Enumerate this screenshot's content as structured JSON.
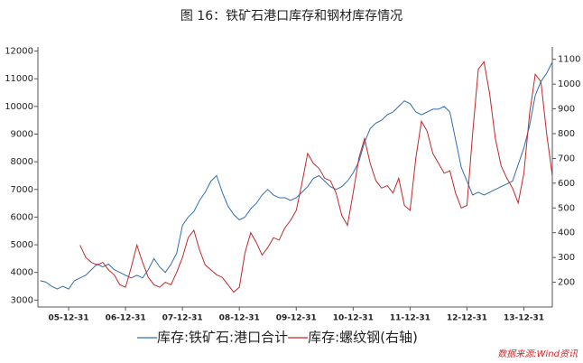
{
  "chart_data": {
    "type": "line",
    "title": "图 16：铁矿石港口库存和钢材库存情况",
    "source": "数据来源:Wind资讯",
    "xlim": [
      2005.46,
      2014.5
    ],
    "xticks": [
      {
        "value": 2006,
        "label": "05-12-31"
      },
      {
        "value": 2007,
        "label": "06-12-31"
      },
      {
        "value": 2008,
        "label": "07-12-31"
      },
      {
        "value": 2009,
        "label": "08-12-31"
      },
      {
        "value": 2010,
        "label": "09-12-31"
      },
      {
        "value": 2011,
        "label": "10-12-31"
      },
      {
        "value": 2012,
        "label": "11-12-31"
      },
      {
        "value": 2013,
        "label": "12-12-31"
      },
      {
        "value": 2014,
        "label": "13-12-31"
      }
    ],
    "ylim": [
      2750,
      12150
    ],
    "yticks": [
      3000,
      4000,
      5000,
      6000,
      7000,
      8000,
      9000,
      10000,
      11000,
      12000
    ],
    "y2lim": [
      100,
      1150
    ],
    "y2ticks": [
      200,
      300,
      400,
      500,
      600,
      700,
      800,
      900,
      1000,
      1100
    ],
    "legend": "bottom",
    "series": [
      {
        "name": "库存:铁矿石:港口合计",
        "color": "#2e6db4",
        "axis": "y",
        "x": [
          2005.5,
          2005.6,
          2005.7,
          2005.8,
          2005.9,
          2006.0,
          2006.1,
          2006.2,
          2006.3,
          2006.4,
          2006.5,
          2006.6,
          2006.7,
          2006.8,
          2006.9,
          2007.0,
          2007.1,
          2007.2,
          2007.3,
          2007.4,
          2007.5,
          2007.6,
          2007.7,
          2007.8,
          2007.9,
          2008.0,
          2008.1,
          2008.2,
          2008.3,
          2008.4,
          2008.5,
          2008.6,
          2008.7,
          2008.8,
          2008.9,
          2009.0,
          2009.1,
          2009.2,
          2009.3,
          2009.4,
          2009.5,
          2009.6,
          2009.7,
          2009.8,
          2009.9,
          2010.0,
          2010.1,
          2010.2,
          2010.3,
          2010.4,
          2010.5,
          2010.6,
          2010.7,
          2010.8,
          2010.9,
          2011.0,
          2011.1,
          2011.2,
          2011.3,
          2011.4,
          2011.5,
          2011.6,
          2011.7,
          2011.8,
          2011.9,
          2012.0,
          2012.1,
          2012.2,
          2012.3,
          2012.4,
          2012.5,
          2012.6,
          2012.7,
          2012.8,
          2012.9,
          2013.0,
          2013.1,
          2013.2,
          2013.3,
          2013.4,
          2013.5,
          2013.6,
          2013.7,
          2013.8,
          2013.9,
          2014.0,
          2014.1,
          2014.2,
          2014.3,
          2014.4,
          2014.5
        ],
        "values": [
          3700,
          3650,
          3500,
          3400,
          3500,
          3400,
          3700,
          3800,
          3900,
          4100,
          4300,
          4200,
          4300,
          4100,
          4000,
          3900,
          3800,
          3900,
          3800,
          4100,
          4500,
          4200,
          4000,
          4300,
          4700,
          5700,
          6000,
          6200,
          6600,
          6900,
          7300,
          7500,
          6900,
          6400,
          6100,
          5900,
          6000,
          6300,
          6500,
          6800,
          7000,
          6800,
          6700,
          6700,
          6600,
          6700,
          6900,
          7100,
          7400,
          7500,
          7300,
          7100,
          7000,
          7100,
          7300,
          7600,
          8000,
          8700,
          9200,
          9400,
          9500,
          9700,
          9800,
          10000,
          10200,
          10100,
          9800,
          9700,
          9800,
          9900,
          9900,
          10000,
          9800,
          8800,
          7800,
          7300,
          6800,
          6900,
          6800,
          6900,
          7000,
          7100,
          7200,
          7300,
          7900,
          8500,
          9300,
          10400,
          10900,
          11200,
          11600
        ]
      },
      {
        "name": "库存:螺纹钢(右轴)",
        "color": "#c0282b",
        "axis": "y2",
        "x": [
          2006.2,
          2006.3,
          2006.4,
          2006.5,
          2006.6,
          2006.7,
          2006.8,
          2006.9,
          2007.0,
          2007.1,
          2007.2,
          2007.3,
          2007.4,
          2007.5,
          2007.6,
          2007.7,
          2007.8,
          2007.9,
          2008.0,
          2008.1,
          2008.2,
          2008.3,
          2008.4,
          2008.5,
          2008.6,
          2008.7,
          2008.8,
          2008.9,
          2009.0,
          2009.1,
          2009.2,
          2009.3,
          2009.4,
          2009.5,
          2009.6,
          2009.7,
          2009.8,
          2009.9,
          2010.0,
          2010.1,
          2010.2,
          2010.3,
          2010.4,
          2010.5,
          2010.6,
          2010.7,
          2010.8,
          2010.9,
          2011.0,
          2011.1,
          2011.2,
          2011.3,
          2011.4,
          2011.5,
          2011.6,
          2011.7,
          2011.8,
          2011.9,
          2012.0,
          2012.1,
          2012.2,
          2012.3,
          2012.4,
          2012.5,
          2012.6,
          2012.7,
          2012.8,
          2012.9,
          2013.0,
          2013.1,
          2013.2,
          2013.3,
          2013.4,
          2013.5,
          2013.6,
          2013.7,
          2013.8,
          2013.9,
          2014.0,
          2014.1,
          2014.2,
          2014.3,
          2014.4,
          2014.5
        ],
        "values": [
          350,
          300,
          280,
          270,
          280,
          250,
          230,
          190,
          180,
          260,
          350,
          280,
          220,
          190,
          180,
          200,
          190,
          240,
          300,
          380,
          410,
          330,
          270,
          250,
          230,
          220,
          190,
          160,
          180,
          320,
          400,
          360,
          310,
          340,
          380,
          370,
          420,
          450,
          490,
          600,
          720,
          680,
          660,
          620,
          610,
          560,
          470,
          430,
          560,
          700,
          780,
          680,
          610,
          580,
          590,
          560,
          620,
          510,
          490,
          700,
          850,
          810,
          720,
          680,
          640,
          650,
          560,
          500,
          510,
          800,
          1060,
          1090,
          960,
          780,
          670,
          620,
          580,
          520,
          640,
          880,
          1040,
          1010,
          800,
          630
        ]
      }
    ]
  }
}
